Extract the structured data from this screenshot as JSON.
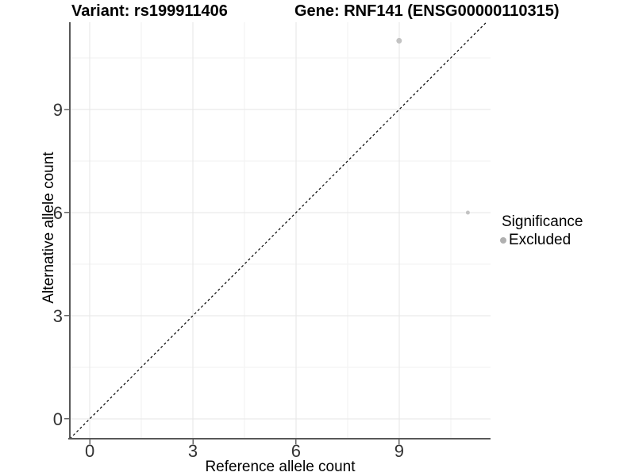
{
  "title": {
    "variant": "Variant: rs199911406",
    "gene": "Gene: RNF141 (ENSG00000110315)"
  },
  "axes": {
    "x": {
      "label": "Reference allele count"
    },
    "y": {
      "label": "Alternative allele count"
    }
  },
  "legend": {
    "title": "Significance",
    "items": [
      {
        "label": "Excluded",
        "marker_color": "#b0b0b0"
      }
    ]
  },
  "chart_data": {
    "type": "scatter",
    "title": "Variant: rs199911406   Gene: RNF141 (ENSG00000110315)",
    "xlabel": "Reference allele count",
    "ylabel": "Alternative allele count",
    "xlim": [
      -0.58,
      11.66
    ],
    "ylim": [
      -0.58,
      11.54
    ],
    "x_major_ticks": [
      0,
      3,
      6,
      9
    ],
    "y_major_ticks": [
      0,
      3,
      6,
      9
    ],
    "x_minor_ticks": [
      1.5,
      4.5,
      7.5,
      10.5
    ],
    "y_minor_ticks": [
      1.5,
      4.5,
      7.5,
      10.5
    ],
    "series": [
      {
        "name": "Excluded",
        "color": "#c3c3c3",
        "points": [
          {
            "x": 9,
            "y": 11,
            "r": 3.5
          },
          {
            "x": 11,
            "y": 6,
            "r": 2.5
          }
        ]
      }
    ],
    "reference_line": {
      "slope": 1,
      "intercept": 0,
      "style": "dashed",
      "color": "#000000"
    },
    "grid": {
      "major_color": "#e6e6e6",
      "minor_color": "#f2f2f2"
    },
    "axis_line_color": "#595959",
    "tick_color": "#666666",
    "tick_label_color": "#333333",
    "legend_position": "right"
  }
}
